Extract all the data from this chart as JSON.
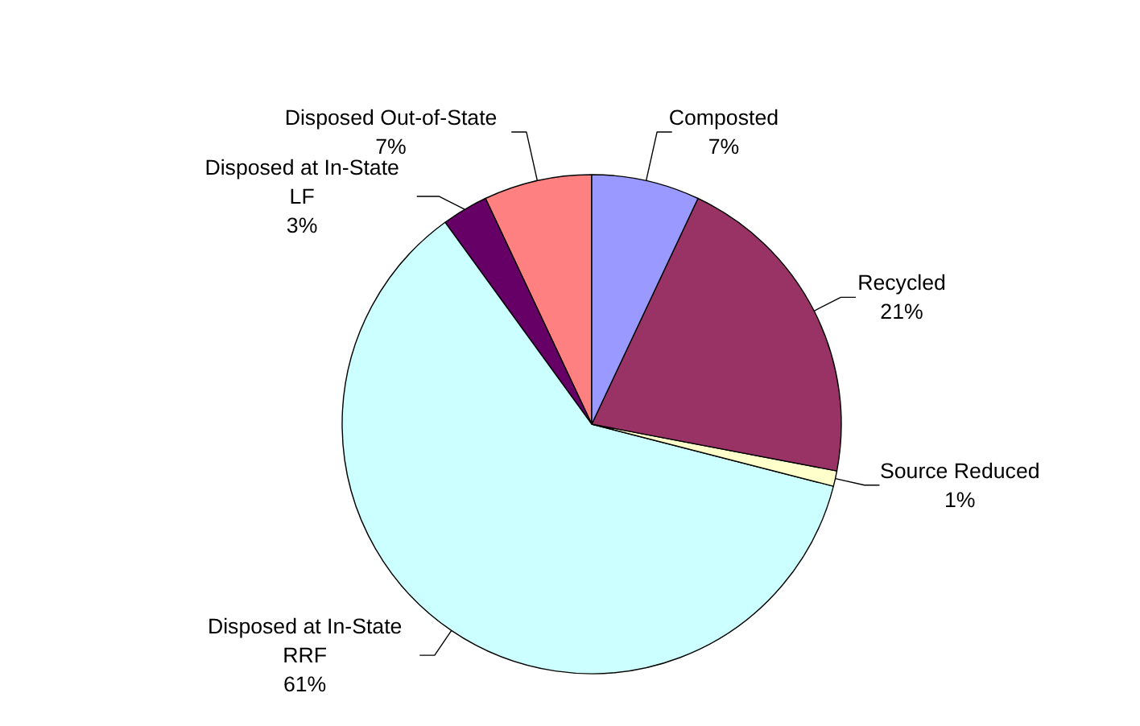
{
  "chart_data": {
    "type": "pie",
    "categories": [
      "Composted",
      "Recycled",
      "Source Reduced",
      "Disposed at In-State RRF",
      "Disposed at In-State LF",
      "Disposed Out-of-State"
    ],
    "values": [
      7,
      21,
      1,
      61,
      3,
      7
    ],
    "value_labels": [
      "7%",
      "21%",
      "1%",
      "61%",
      "3%",
      "7%"
    ],
    "colors": [
      "#9999ff",
      "#993366",
      "#ffffcc",
      "#ccffff",
      "#660066",
      "#ff8080"
    ],
    "legend": false
  }
}
